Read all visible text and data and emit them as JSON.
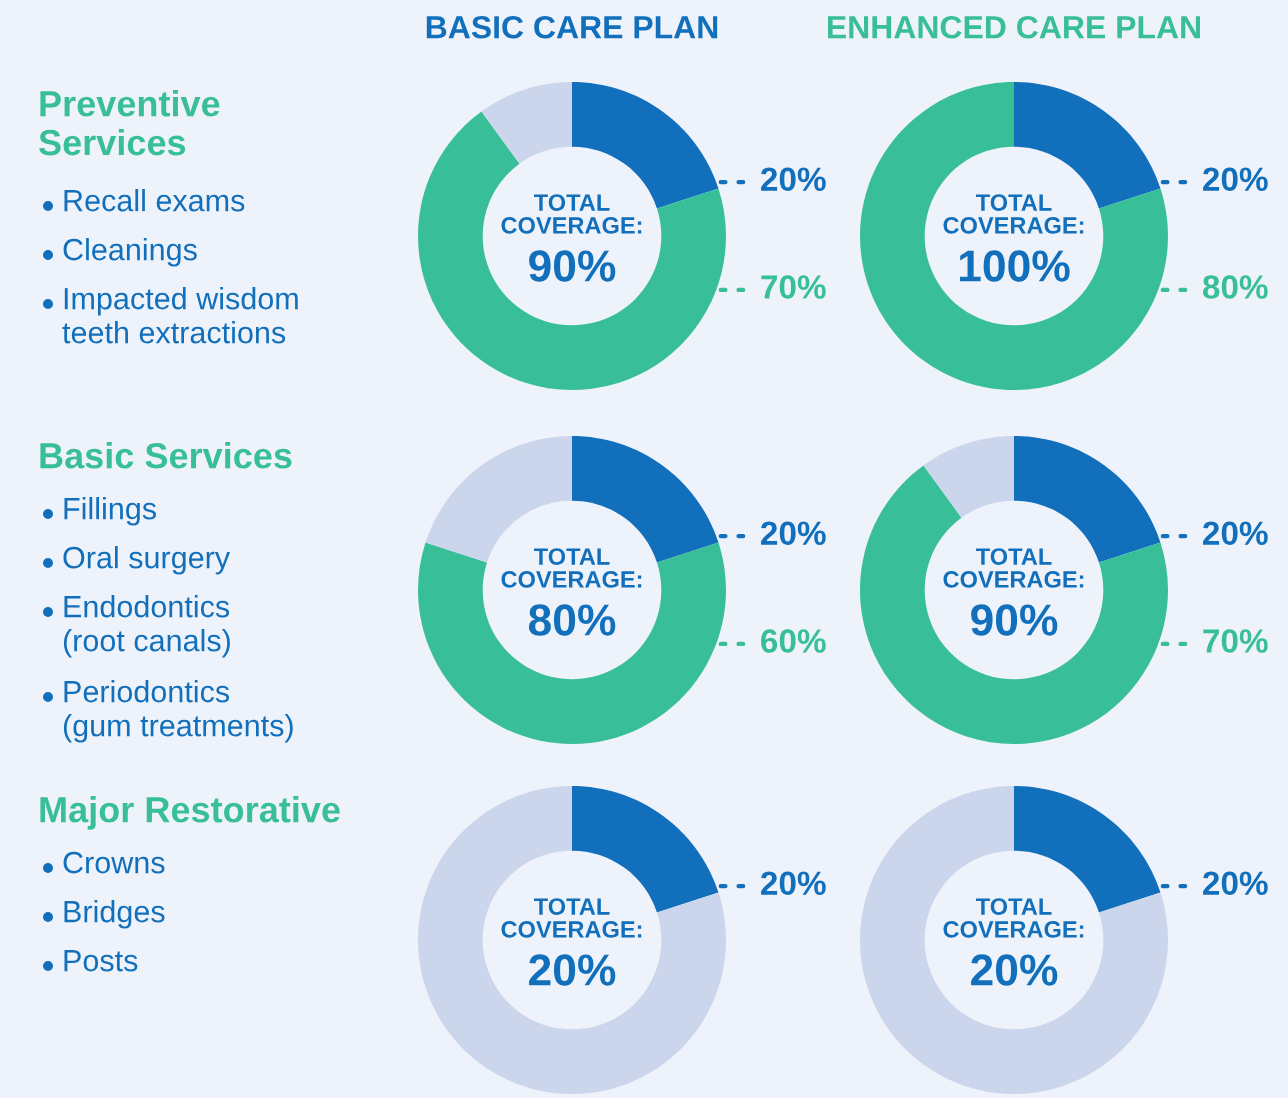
{
  "chart_data": [
    {
      "type": "other",
      "title": "Preventive\nServices",
      "annotations": [
        "Recall exams",
        "Cleanings",
        "Impacted wisdom\nteeth extractions"
      ]
    },
    {
      "type": "donut",
      "title": "BASIC CARE PLAN",
      "categories": [
        null,
        null,
        null
      ],
      "values": [
        20,
        70,
        10
      ],
      "colors": [
        "#116fbb",
        "#38bf98",
        "#cbd6ec"
      ],
      "value_labels": [
        "20%",
        "70%",
        null
      ],
      "annotations": [
        "TOTAL\nCOVERAGE:",
        "90%"
      ]
    },
    {
      "type": "donut",
      "title": "ENHANCED CARE PLAN",
      "categories": [
        null,
        null
      ],
      "values": [
        20,
        80
      ],
      "colors": [
        "#116fbb",
        "#38bf98"
      ],
      "value_labels": [
        "20%",
        "80%"
      ],
      "annotations": [
        "TOTAL\nCOVERAGE:",
        "100%"
      ]
    },
    {
      "type": "other",
      "title": "Basic Services",
      "annotations": [
        "Fillings",
        "Oral surgery",
        "Endodontics\n(root canals)",
        "Periodontics\n(gum treatments)"
      ]
    },
    {
      "type": "donut",
      "categories": [
        null,
        null,
        null
      ],
      "values": [
        20,
        60,
        20
      ],
      "colors": [
        "#116fbb",
        "#38bf98",
        "#cbd6ec"
      ],
      "value_labels": [
        "20%",
        "60%",
        null
      ],
      "annotations": [
        "TOTAL\nCOVERAGE:",
        "80%"
      ]
    },
    {
      "type": "donut",
      "categories": [
        null,
        null,
        null
      ],
      "values": [
        20,
        70,
        10
      ],
      "colors": [
        "#116fbb",
        "#38bf98",
        "#cbd6ec"
      ],
      "value_labels": [
        "20%",
        "70%",
        null
      ],
      "annotations": [
        "TOTAL\nCOVERAGE:",
        "90%"
      ]
    },
    {
      "type": "other",
      "title": "Major Restorative",
      "annotations": [
        "Crowns",
        "Bridges",
        "Posts"
      ]
    },
    {
      "type": "donut",
      "categories": [
        null,
        null
      ],
      "values": [
        20,
        80
      ],
      "colors": [
        "#116fbb",
        "#cbd6ec"
      ],
      "value_labels": [
        "20%",
        null
      ],
      "annotations": [
        "TOTAL\nCOVERAGE:",
        "20%"
      ]
    },
    {
      "type": "donut",
      "categories": [
        null,
        null
      ],
      "values": [
        20,
        80
      ],
      "colors": [
        "#116fbb",
        "#cbd6ec"
      ],
      "value_labels": [
        "20%",
        null
      ],
      "annotations": [
        "TOTAL\nCOVERAGE:",
        "20%"
      ]
    }
  ]
}
